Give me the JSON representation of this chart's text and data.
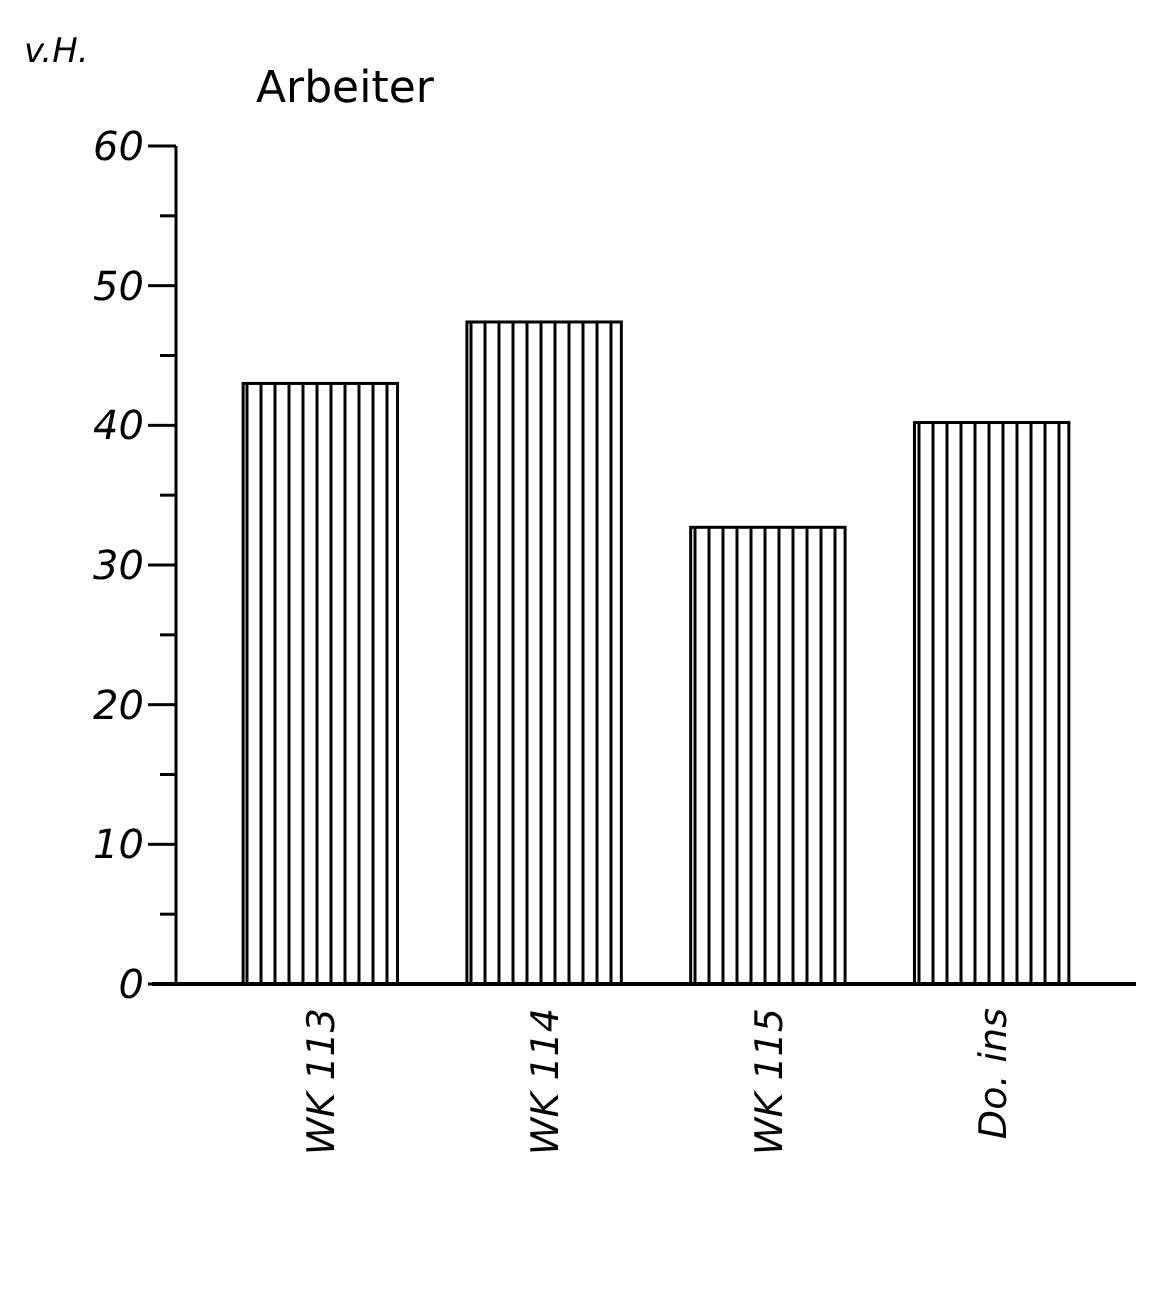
{
  "chart_data": {
    "type": "bar",
    "title": "Arbeiter",
    "ylabel": "v.H.",
    "categories": [
      "WK 113",
      "WK 114",
      "WK 115",
      "Do. ins"
    ],
    "values": [
      43.0,
      47.4,
      32.7,
      40.2
    ],
    "color": "#000000",
    "ylim": [
      0,
      60
    ],
    "yticks": [
      0,
      {
        "value": 5,
        "label": null
      },
      10,
      {
        "value": 15,
        "label": null
      },
      20,
      {
        "value": 25,
        "label": null
      },
      30,
      {
        "value": 35,
        "label": null
      },
      40,
      {
        "value": 45,
        "label": null
      },
      50,
      {
        "value": 55,
        "label": null
      },
      60
    ],
    "grid": false
  }
}
